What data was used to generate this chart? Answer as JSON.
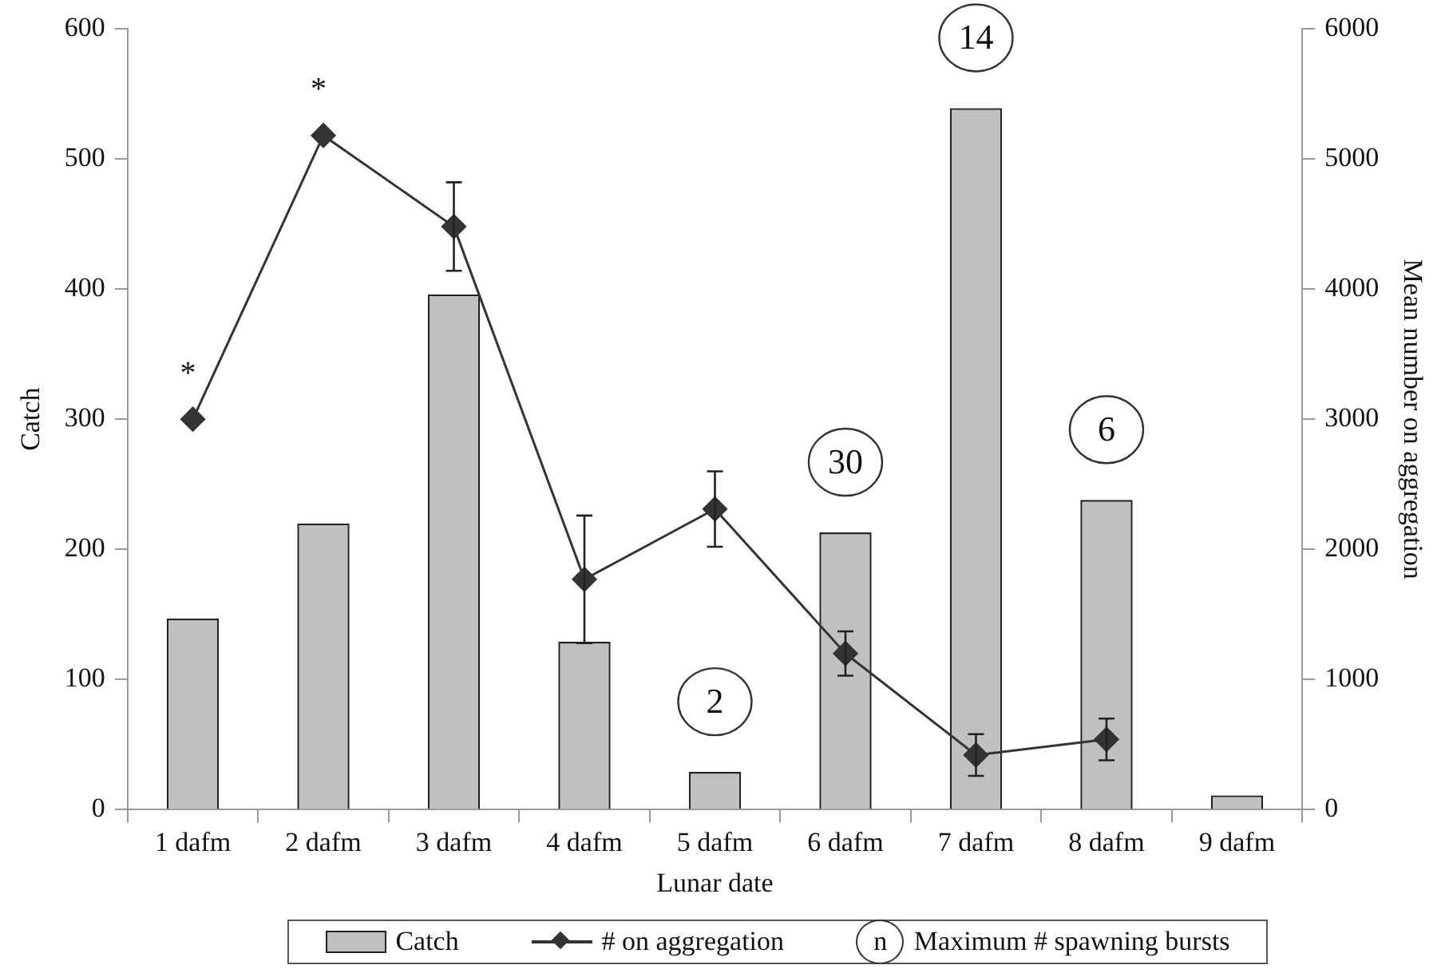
{
  "chart_data": {
    "type": "bar",
    "xlabel": "Lunar date",
    "ylabel": "Catch",
    "y2label": "Mean number on aggregation",
    "categories": [
      "1 dafm",
      "2 dafm",
      "3 dafm",
      "4 dafm",
      "5 dafm",
      "6 dafm",
      "7 dafm",
      "8 dafm",
      "9 dafm"
    ],
    "series": [
      {
        "name": "Catch",
        "color": "#c0c0c0",
        "values": [
          147,
          220,
          396,
          129,
          29,
          213,
          539,
          238,
          11
        ]
      },
      {
        "name": "# on aggregation",
        "type": "line",
        "axis": "y2",
        "color": "#333333",
        "marker": "diamond",
        "values": [
          3000,
          5180,
          4480,
          1770,
          2310,
          1200,
          420,
          540,
          null
        ],
        "errors": [
          null,
          null,
          340,
          490,
          290,
          170,
          160,
          160,
          null
        ]
      }
    ],
    "ylim": [
      0,
      600
    ],
    "yticks": [
      0,
      100,
      200,
      300,
      400,
      500,
      600
    ],
    "y2lim": [
      0,
      6000
    ],
    "y2ticks": [
      0,
      1000,
      2000,
      3000,
      4000,
      5000,
      6000
    ],
    "grid": false,
    "legend": "bottom",
    "annotations": [
      "*",
      "*",
      {
        "text": "2",
        "x": "5 dafm",
        "y": 29
      },
      {
        "text": "30",
        "x": "6 dafm",
        "y": 213
      },
      {
        "text": "14",
        "x": "7 dafm",
        "y": 539
      },
      {
        "text": "6",
        "x": "8 dafm",
        "y": 238
      },
      "n",
      "Maximum # spawning bursts"
    ]
  }
}
